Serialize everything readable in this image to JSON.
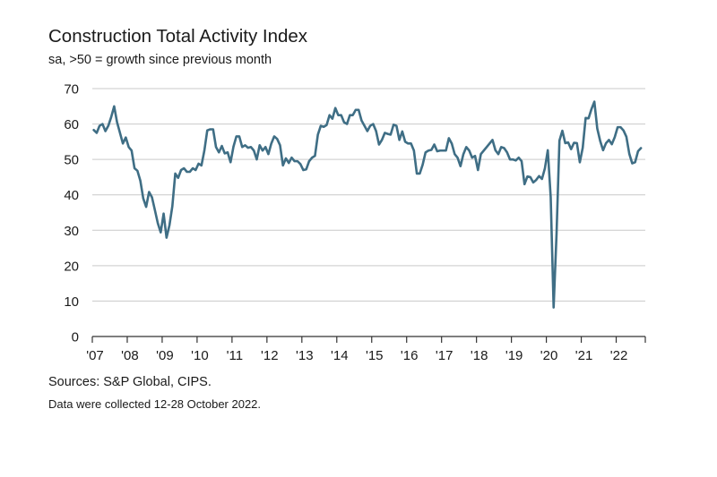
{
  "chart_data": {
    "type": "line",
    "title": "Construction Total Activity Index",
    "subtitle": "sa, >50 = growth since previous month",
    "xlabel": "",
    "ylabel": "",
    "ylim": [
      0,
      70
    ],
    "yticks": [
      0,
      10,
      20,
      30,
      40,
      50,
      60,
      70
    ],
    "xticks": [
      "'07",
      "'08",
      "'09",
      "'10",
      "'11",
      "'12",
      "'13",
      "'14",
      "'15",
      "'16",
      "'17",
      "'18",
      "'19",
      "'20",
      "'21",
      "'22"
    ],
    "xrange": [
      "2007-01",
      "2022-10"
    ],
    "grid": "horizontal",
    "line_color": "#3f6e85",
    "series": [
      {
        "name": "",
        "start": "2007-01",
        "frequency": "monthly",
        "values": [
          58.3,
          57.5,
          59.5,
          60.0,
          58.0,
          59.5,
          62.0,
          65.0,
          60.5,
          57.5,
          54.5,
          56.2,
          53.5,
          52.5,
          47.5,
          46.8,
          44.0,
          39.0,
          36.6,
          40.8,
          39.3,
          35.7,
          32.0,
          29.4,
          34.7,
          27.9,
          31.4,
          36.8,
          46.0,
          44.8,
          47.0,
          47.5,
          46.5,
          46.5,
          47.5,
          47.0,
          48.8,
          48.3,
          52.5,
          58.2,
          58.5,
          58.5,
          53.5,
          52.0,
          53.8,
          51.7,
          52.0,
          49.2,
          53.6,
          56.5,
          56.5,
          53.5,
          54.0,
          53.3,
          53.5,
          52.5,
          50.0,
          54.0,
          52.5,
          53.5,
          51.5,
          54.5,
          56.5,
          55.8,
          54.0,
          48.3,
          50.3,
          49.0,
          50.5,
          49.5,
          49.5,
          48.7,
          47.0,
          47.2,
          49.5,
          50.5,
          51.0,
          57.0,
          59.5,
          59.2,
          59.7,
          62.5,
          61.5,
          64.5,
          62.5,
          62.5,
          60.5,
          60.0,
          62.5,
          62.5,
          64.0,
          64.0,
          61.0,
          59.5,
          58.0,
          59.5,
          60.0,
          58.0,
          54.2,
          55.5,
          57.5,
          57.2,
          57.0,
          59.8,
          59.5,
          55.5,
          57.9,
          55.0,
          54.5,
          54.5,
          52.5,
          46.0,
          46.0,
          48.5,
          52.0,
          52.5,
          52.7,
          54.2,
          52.3,
          52.5,
          52.5,
          52.5,
          56.0,
          54.5,
          51.5,
          50.5,
          48.1,
          51.5,
          53.5,
          52.5,
          50.5,
          51.0,
          47.0,
          51.5,
          52.5,
          53.5,
          54.5,
          55.5,
          52.6,
          51.5,
          53.5,
          53.2,
          52.0,
          50.0,
          50.0,
          49.7,
          50.5,
          49.5,
          43.0,
          45.2,
          45.0,
          43.5,
          44.2,
          45.3,
          44.5,
          47.5,
          52.6,
          39.3,
          8.2,
          28.9,
          55.3,
          58.1,
          54.6,
          54.8,
          52.9,
          54.7,
          54.6,
          49.2,
          53.3,
          61.7,
          61.6,
          64.2,
          66.3,
          58.7,
          55.2,
          52.6,
          54.6,
          55.5,
          54.3,
          56.3,
          59.1,
          59.1,
          58.2,
          56.4,
          51.6,
          48.9,
          49.2,
          52.3,
          53.2
        ]
      }
    ]
  },
  "footnotes": {
    "sources": "Sources: S&P Global, CIPS.",
    "collected": "Data were collected 12-28 October 2022."
  }
}
